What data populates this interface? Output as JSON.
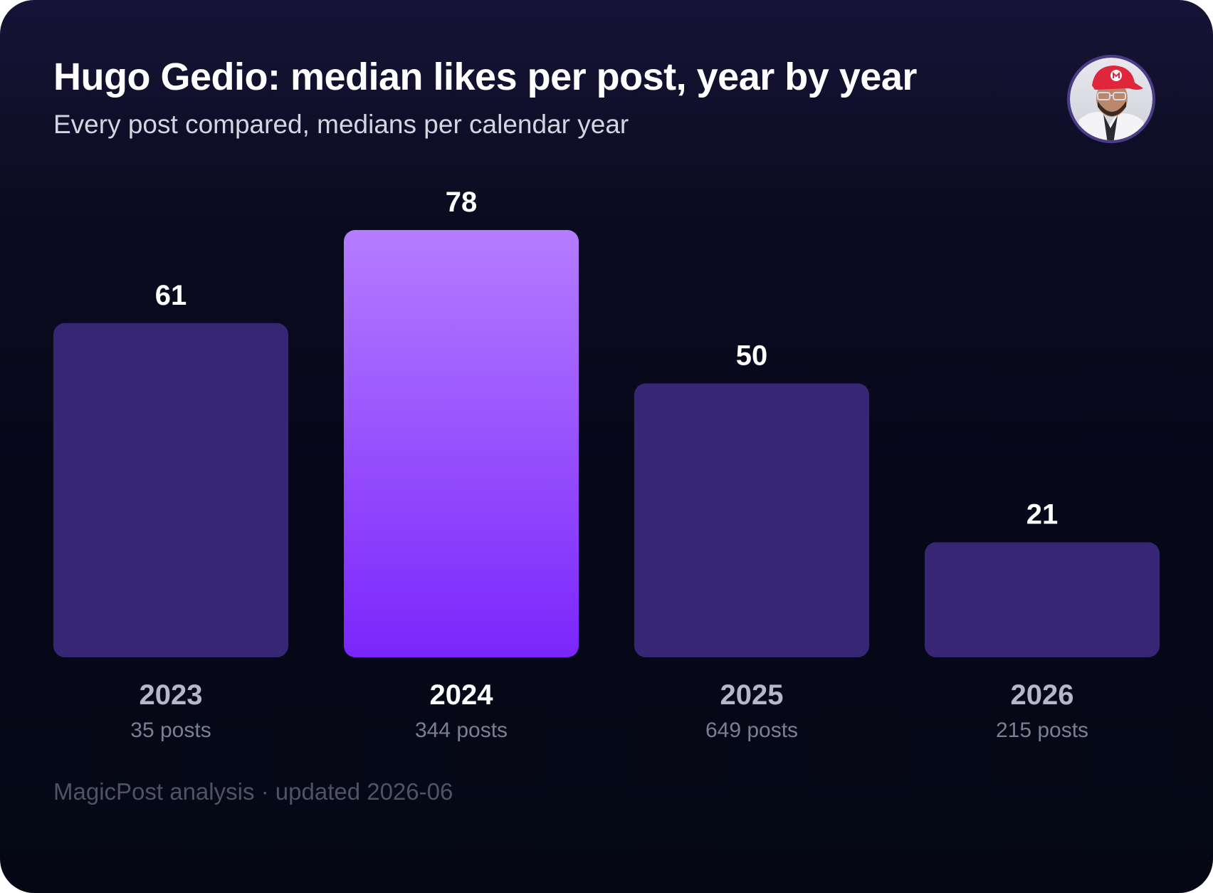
{
  "header": {
    "title": "Hugo Gedio: median likes per post, year by year",
    "subtitle": "Every post compared, medians per calendar year"
  },
  "footer": {
    "text": "MagicPost analysis · updated 2026-06"
  },
  "colors": {
    "bar_default": "#372674",
    "bar_highlight_top": "#b57cff",
    "bar_highlight_bottom": "#7a26fb",
    "value_label": "#ffffff",
    "year_label_default": "#b6b8c9",
    "year_label_highlight": "#ffffff",
    "posts_label": "#7b7f94"
  },
  "chart_data": {
    "type": "bar",
    "categories": [
      "2023",
      "2024",
      "2025",
      "2026"
    ],
    "values": [
      61,
      78,
      50,
      21
    ],
    "value_labels": [
      "61",
      "78",
      "50",
      "21"
    ],
    "post_counts": [
      "35 posts",
      "344 posts",
      "649 posts",
      "215 posts"
    ],
    "highlight": "2024",
    "title": "Hugo Gedio: median likes per post, year by year",
    "subtitle": "Every post compared, medians per calendar year",
    "xlabel": "",
    "ylabel": "",
    "ylim": [
      0,
      78
    ],
    "grid": false,
    "legend": "none"
  }
}
